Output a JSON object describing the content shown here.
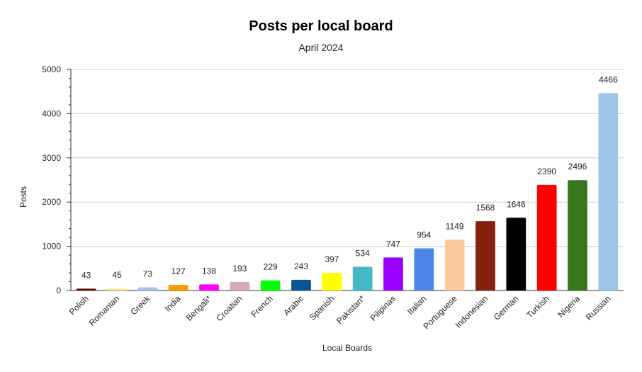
{
  "chart_data": {
    "type": "bar",
    "title": "Posts per local board",
    "subtitle": "April 2024",
    "xlabel": "Local Boards",
    "ylabel": "Posts",
    "ylim": [
      0,
      5000
    ],
    "yticks": [
      0,
      1000,
      2000,
      3000,
      4000,
      5000
    ],
    "grid": true,
    "legend": "none",
    "categories": [
      "Polish",
      "Romanian",
      "Greek",
      "India",
      "Bengali*",
      "Croatian",
      "French",
      "Arabic",
      "Spanish",
      "Pakistan*",
      "Pilipinas",
      "Italian",
      "Portuguese",
      "Indonesian",
      "German",
      "Turkish",
      "Nigeria",
      "Russian"
    ],
    "values": [
      43,
      45,
      73,
      127,
      138,
      193,
      229,
      243,
      397,
      534,
      747,
      954,
      1149,
      1568,
      1646,
      2390,
      2496,
      4466
    ],
    "colors": [
      "#5b0f00",
      "#ffe599",
      "#a4c2f4",
      "#ff9900",
      "#ff00ff",
      "#d5a6bd",
      "#00ff00",
      "#0b5394",
      "#ffff00",
      "#45b8c8",
      "#9900ff",
      "#4a86e8",
      "#f9cb9c",
      "#85200c",
      "#000000",
      "#ff0000",
      "#38761d",
      "#9fc5e8"
    ]
  }
}
